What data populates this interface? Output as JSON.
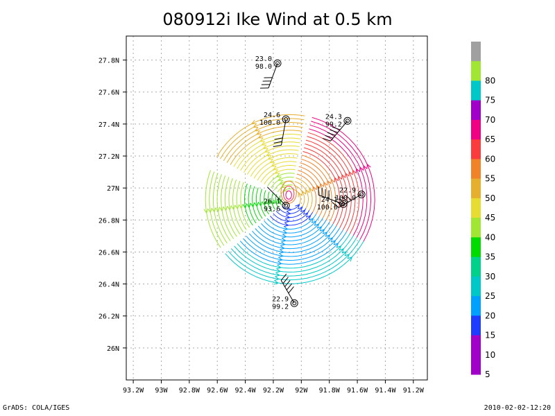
{
  "chart_data": {
    "type": "vector-field",
    "title": "080912i Ike Wind at 0.5 km",
    "xlim": [
      -93.25,
      -91.1
    ],
    "ylim": [
      25.8,
      27.95
    ],
    "x_ticks": [
      {
        "value": -93.2,
        "label": "93.2W"
      },
      {
        "value": -93.0,
        "label": "93W"
      },
      {
        "value": -92.8,
        "label": "92.8W"
      },
      {
        "value": -92.6,
        "label": "92.6W"
      },
      {
        "value": -92.4,
        "label": "92.4W"
      },
      {
        "value": -92.2,
        "label": "92.2W"
      },
      {
        "value": -92.0,
        "label": "92W"
      },
      {
        "value": -91.8,
        "label": "91.8W"
      },
      {
        "value": -91.6,
        "label": "91.6W"
      },
      {
        "value": -91.4,
        "label": "91.4W"
      },
      {
        "value": -91.2,
        "label": "91.2W"
      }
    ],
    "y_ticks": [
      {
        "value": 26.0,
        "label": "26N"
      },
      {
        "value": 26.2,
        "label": "26.2N"
      },
      {
        "value": 26.4,
        "label": "26.4N"
      },
      {
        "value": 26.6,
        "label": "26.6N"
      },
      {
        "value": 26.8,
        "label": "26.8N"
      },
      {
        "value": 27.0,
        "label": "27N"
      },
      {
        "value": 27.2,
        "label": "27.2N"
      },
      {
        "value": 27.4,
        "label": "27.4N"
      },
      {
        "value": 27.6,
        "label": "27.6N"
      },
      {
        "value": 27.8,
        "label": "27.8N"
      }
    ],
    "grid": true,
    "storm_center": {
      "lon": -92.08,
      "lat": 26.93
    },
    "domain": {
      "rmin": 0.12,
      "rmax": 0.98
    },
    "colorbar": {
      "levels": [
        {
          "label": "",
          "color": "#a0a0a0"
        },
        {
          "label": "80",
          "color": "#a0e632"
        },
        {
          "label": "75",
          "color": "#00c8c8"
        },
        {
          "label": "70",
          "color": "#a000c8"
        },
        {
          "label": "65",
          "color": "#f00082"
        },
        {
          "label": "60",
          "color": "#fa3c3c"
        },
        {
          "label": "55",
          "color": "#f08228"
        },
        {
          "label": "50",
          "color": "#e6af2d"
        },
        {
          "label": "45",
          "color": "#e6dc32"
        },
        {
          "label": "40",
          "color": "#a0e632"
        },
        {
          "label": "35",
          "color": "#00dc00"
        },
        {
          "label": "30",
          "color": "#00d28c"
        },
        {
          "label": "25",
          "color": "#00c8c8"
        },
        {
          "label": "20",
          "color": "#00a0ff"
        },
        {
          "label": "15",
          "color": "#1e3cff"
        },
        {
          "label": "10",
          "color": "#a000c8"
        },
        {
          "label": "5",
          "color": "#a000c8"
        }
      ]
    },
    "stations": [
      {
        "lon": -92.17,
        "lat": 27.78,
        "top": "23.0",
        "bottom": "98.0",
        "side": "left",
        "wind_dir": 110,
        "barbs": 4
      },
      {
        "lon": -92.11,
        "lat": 27.43,
        "top": "24.6",
        "bottom": "100.0",
        "side": "left",
        "wind_dir": 100,
        "barbs": 3
      },
      {
        "lon": -91.67,
        "lat": 27.42,
        "top": "24.3",
        "bottom": "99.2",
        "side": "left",
        "wind_dir": 130,
        "barbs": 5
      },
      {
        "lon": -92.11,
        "lat": 26.89,
        "top": "26.1",
        "bottom": "93.6",
        "side": "left",
        "wind_dir": 225,
        "barbs": 0
      },
      {
        "lon": -91.57,
        "lat": 26.96,
        "top": "22.9",
        "bottom": "100.0",
        "side": "left",
        "wind_dir": 150,
        "barbs": 5
      },
      {
        "lon": -91.7,
        "lat": 26.9,
        "top": "24.1",
        "bottom": "100.0",
        "side": "left",
        "wind_dir": 200,
        "barbs": 4
      },
      {
        "lon": -92.05,
        "lat": 26.28,
        "top": "22.9",
        "bottom": "99.2",
        "side": "left",
        "wind_dir": 240,
        "barbs": 5
      }
    ]
  },
  "footer": {
    "left": "GrADS: COLA/IGES",
    "right": "2010-02-02-12:20"
  }
}
